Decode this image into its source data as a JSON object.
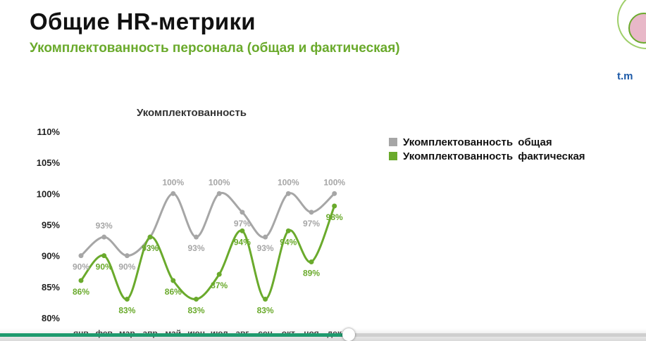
{
  "header": {
    "title": "Общие HR-метрики",
    "subtitle": "Укомплектованность персонала (общая и фактическая)"
  },
  "logo": {
    "text": "t.m"
  },
  "colors": {
    "total": "#a6a6a6",
    "actual": "#6aaa2c",
    "accent_green": "#6aaa2c",
    "progress": "#1e9a6e"
  },
  "chart_data": {
    "type": "line",
    "title": "Укомплектованность",
    "categories": [
      "янв",
      "фев",
      "мар",
      "апр",
      "май",
      "июн",
      "июл",
      "авг",
      "сен",
      "окт",
      "ноя",
      "дек"
    ],
    "series": [
      {
        "name": "Укомплектованность общая",
        "values": [
          90,
          93,
          90,
          93,
          100,
          93,
          100,
          97,
          93,
          100,
          97,
          100
        ],
        "labels": [
          "90%",
          "93%",
          "90%",
          "93%",
          "100%",
          "93%",
          "100%",
          "97%",
          "93%",
          "100%",
          "97%",
          "100%"
        ]
      },
      {
        "name": "Укомплектованность фактическая",
        "values": [
          86,
          90,
          83,
          93,
          86,
          83,
          87,
          94,
          83,
          94,
          89,
          98
        ],
        "labels": [
          "86%",
          "90%",
          "83%",
          "93%",
          "86%",
          "83%",
          "87%",
          "94%",
          "83%",
          "94%",
          "89%",
          "98%"
        ]
      }
    ],
    "ylim": [
      80,
      110
    ],
    "yticks": [
      "80%",
      "85%",
      "90%",
      "95%",
      "100%",
      "105%",
      "110%"
    ],
    "legend": "right",
    "grid": false
  },
  "player": {
    "progress": 0.6
  }
}
